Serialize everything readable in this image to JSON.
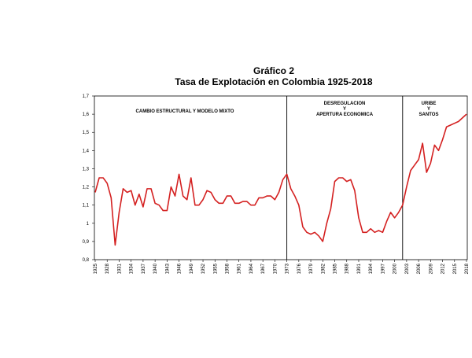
{
  "chart_data": {
    "type": "line",
    "title": "Gráfico 2",
    "subtitle": "Tasa de Explotación en Colombia 1925-2018",
    "annotations": [
      [
        "CAMBIO ESTRUCTURAL Y MODELO MIXTO"
      ],
      [
        "DESREGULACION",
        "Y",
        "APERTURA ECONOMICA"
      ],
      [
        "URIBE",
        "Y",
        "SANTOS"
      ]
    ],
    "x": [
      1925,
      1926,
      1927,
      1928,
      1929,
      1930,
      1931,
      1932,
      1933,
      1934,
      1935,
      1936,
      1937,
      1938,
      1939,
      1940,
      1941,
      1942,
      1943,
      1944,
      1945,
      1946,
      1947,
      1948,
      1949,
      1950,
      1951,
      1952,
      1953,
      1954,
      1955,
      1956,
      1957,
      1958,
      1959,
      1960,
      1961,
      1962,
      1963,
      1964,
      1965,
      1966,
      1967,
      1968,
      1969,
      1970,
      1971,
      1972,
      1973,
      1974,
      1975,
      1976,
      1977,
      1978,
      1979,
      1980,
      1981,
      1982,
      1983,
      1984,
      1985,
      1986,
      1987,
      1988,
      1989,
      1990,
      1991,
      1992,
      1993,
      1994,
      1995,
      1996,
      1997,
      1998,
      1999,
      2000,
      2001,
      2002,
      2003,
      2004,
      2005,
      2006,
      2007,
      2008,
      2009,
      2010,
      2011,
      2012,
      2013,
      2014,
      2015,
      2016,
      2017,
      2018
    ],
    "series": [
      {
        "color": "#d42020",
        "values": [
          1.17,
          1.25,
          1.25,
          1.22,
          1.14,
          0.88,
          1.06,
          1.19,
          1.17,
          1.18,
          1.1,
          1.16,
          1.09,
          1.19,
          1.19,
          1.11,
          1.1,
          1.07,
          1.07,
          1.2,
          1.15,
          1.27,
          1.15,
          1.13,
          1.25,
          1.1,
          1.1,
          1.13,
          1.18,
          1.17,
          1.13,
          1.11,
          1.11,
          1.15,
          1.15,
          1.11,
          1.11,
          1.12,
          1.12,
          1.1,
          1.1,
          1.14,
          1.14,
          1.15,
          1.15,
          1.13,
          1.17,
          1.24,
          1.27,
          1.19,
          1.15,
          1.1,
          0.98,
          0.95,
          0.94,
          0.95,
          0.93,
          0.9,
          1.0,
          1.08,
          1.23,
          1.25,
          1.25,
          1.23,
          1.24,
          1.18,
          1.03,
          0.95,
          0.95,
          0.97,
          0.95,
          0.96,
          0.95,
          1.01,
          1.06,
          1.03,
          1.06,
          1.1,
          1.2,
          1.29,
          1.32,
          1.35,
          1.44,
          1.28,
          1.33,
          1.43,
          1.4,
          1.46,
          1.53,
          1.54,
          1.55,
          1.56,
          1.58,
          1.6
        ]
      }
    ],
    "xlim": [
      1925,
      2018
    ],
    "xticks": [
      1925,
      1928,
      1931,
      1934,
      1937,
      1940,
      1943,
      1946,
      1949,
      1952,
      1955,
      1958,
      1961,
      1964,
      1967,
      1970,
      1973,
      1976,
      1979,
      1982,
      1985,
      1988,
      1991,
      1994,
      1997,
      2000,
      2003,
      2006,
      2009,
      2012,
      2015,
      2018
    ],
    "vlines": [
      1973,
      2002
    ],
    "ylim": [
      0.8,
      1.7
    ],
    "yticks": [
      {
        "value": 0.8,
        "label": "0,8"
      },
      {
        "value": 0.9,
        "label": "0,9"
      },
      1,
      {
        "value": 1.1,
        "label": "1,1"
      },
      {
        "value": 1.2,
        "label": "1,2"
      },
      {
        "value": 1.3,
        "label": "1,3"
      },
      {
        "value": 1.4,
        "label": "1,4"
      },
      {
        "value": 1.5,
        "label": "1,5"
      },
      {
        "value": 1.6,
        "label": "1,6"
      },
      {
        "value": 1.7,
        "label": "1,7"
      }
    ],
    "grid": false
  }
}
